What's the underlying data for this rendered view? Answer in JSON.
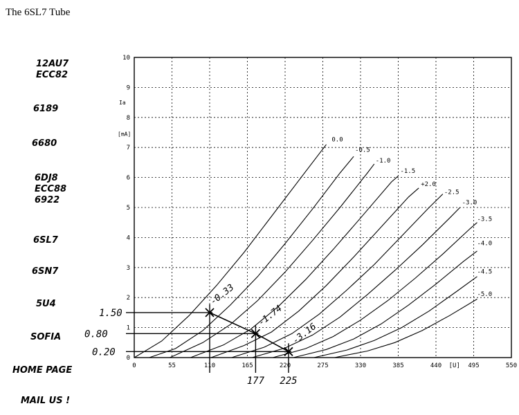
{
  "page": {
    "title": "The 6SL7 Tube"
  },
  "nav": {
    "items": [
      {
        "name": "nav-12au7",
        "lines": [
          "12AU7",
          "ECC82"
        ]
      },
      {
        "name": "nav-6189",
        "lines": [
          "6189"
        ]
      },
      {
        "name": "nav-6680",
        "lines": [
          "6680"
        ]
      },
      {
        "name": "nav-6dj8",
        "lines": [
          "6DJ8",
          "ECC88",
          "6922"
        ]
      },
      {
        "name": "nav-6sl7",
        "lines": [
          "6SL7"
        ]
      },
      {
        "name": "nav-6sn7",
        "lines": [
          "6SN7"
        ]
      },
      {
        "name": "nav-5u4",
        "lines": [
          "5U4"
        ]
      },
      {
        "name": "nav-sofia",
        "lines": [
          "SOFIA"
        ]
      },
      {
        "name": "nav-home-page",
        "lines": [
          "HOME PAGE"
        ]
      },
      {
        "name": "nav-mail-us",
        "lines": [
          "MAIL US !"
        ]
      }
    ]
  },
  "chart_data": {
    "type": "line",
    "title": "",
    "ylabel_lines": [
      "Ia",
      "[mA]"
    ],
    "xlabel": "[U]",
    "xlim": [
      0,
      550
    ],
    "ylim": [
      0,
      10
    ],
    "xticks": [
      0,
      55,
      110,
      165,
      220,
      275,
      330,
      385,
      440,
      495,
      550
    ],
    "xtick_labels": [
      "0",
      "55",
      "110",
      "165",
      "220",
      "275",
      "330",
      "385",
      "440",
      "495",
      "550"
    ],
    "yticks": [
      0,
      1,
      2,
      3,
      4,
      5,
      6,
      7,
      8,
      9,
      10
    ],
    "ytick_labels": [
      "0",
      "1",
      "2",
      "3",
      "4",
      "5",
      "6",
      "7",
      "8",
      "9",
      "10"
    ],
    "grid": true,
    "series": [
      {
        "name": "0.0",
        "x": [
          0,
          40,
          80,
          120,
          160,
          200,
          240,
          280
        ],
        "y": [
          0,
          0.55,
          1.4,
          2.4,
          3.5,
          4.7,
          5.9,
          7.1
        ]
      },
      {
        "name": "-0.5",
        "x": [
          22,
          60,
          100,
          140,
          180,
          220,
          260,
          300,
          320
        ],
        "y": [
          0,
          0.3,
          0.9,
          1.75,
          2.7,
          3.8,
          4.95,
          6.15,
          6.7
        ]
      },
      {
        "name": "-1.0",
        "x": [
          52,
          100,
          140,
          180,
          220,
          260,
          300,
          340,
          350
        ],
        "y": [
          0,
          0.5,
          1.1,
          1.9,
          2.85,
          3.9,
          5.0,
          6.15,
          6.45
        ]
      },
      {
        "name": "-1.5",
        "x": [
          82,
          130,
          170,
          210,
          250,
          290,
          330,
          375,
          385
        ],
        "y": [
          0,
          0.42,
          0.95,
          1.7,
          2.6,
          3.6,
          4.65,
          5.85,
          6.05
        ]
      },
      {
        "name": "+2.0",
        "x": [
          112,
          160,
          200,
          240,
          280,
          320,
          360,
          400,
          415
        ],
        "y": [
          0,
          0.4,
          0.85,
          1.55,
          2.4,
          3.35,
          4.35,
          5.35,
          5.65
        ]
      },
      {
        "name": "-2.5",
        "x": [
          142,
          190,
          230,
          270,
          310,
          350,
          390,
          430,
          450
        ],
        "y": [
          0,
          0.35,
          0.8,
          1.45,
          2.25,
          3.1,
          4.05,
          5.0,
          5.45
        ]
      },
      {
        "name": "-3.0",
        "x": [
          172,
          220,
          260,
          300,
          340,
          380,
          420,
          460,
          475
        ],
        "y": [
          0,
          0.32,
          0.75,
          1.35,
          2.1,
          2.9,
          3.75,
          4.65,
          5.0
        ]
      },
      {
        "name": "-3.5",
        "x": [
          202,
          250,
          290,
          330,
          370,
          410,
          450,
          490,
          500
        ],
        "y": [
          0,
          0.3,
          0.7,
          1.25,
          1.9,
          2.65,
          3.45,
          4.3,
          4.5
        ]
      },
      {
        "name": "-4.0",
        "x": [
          232,
          280,
          320,
          360,
          400,
          440,
          480,
          500
        ],
        "y": [
          0,
          0.27,
          0.62,
          1.12,
          1.75,
          2.45,
          3.2,
          3.55
        ]
      },
      {
        "name": "-4.5",
        "x": [
          262,
          310,
          350,
          390,
          430,
          470,
          500
        ],
        "y": [
          0,
          0.25,
          0.57,
          1.0,
          1.55,
          2.2,
          2.7
        ]
      },
      {
        "name": "-5.0",
        "x": [
          292,
          340,
          380,
          420,
          460,
          500
        ],
        "y": [
          0,
          0.22,
          0.5,
          0.9,
          1.4,
          1.95
        ]
      }
    ],
    "series_labels": [
      {
        "text": "0.0",
        "x": 288,
        "y": 7.2
      },
      {
        "text": "-0.5",
        "x": 322,
        "y": 6.85
      },
      {
        "text": "-1.0",
        "x": 352,
        "y": 6.5
      },
      {
        "text": "-1.5",
        "x": 388,
        "y": 6.15
      },
      {
        "text": "+2.0",
        "x": 418,
        "y": 5.72
      },
      {
        "text": "-2.5",
        "x": 452,
        "y": 5.45
      },
      {
        "text": "-3.0",
        "x": 478,
        "y": 5.1
      },
      {
        "text": "-3.5",
        "x": 500,
        "y": 4.55
      },
      {
        "text": "-4.0",
        "x": 500,
        "y": 3.75
      },
      {
        "text": "-4.5",
        "x": 500,
        "y": 2.8
      },
      {
        "text": "-5.0",
        "x": 500,
        "y": 2.05
      }
    ],
    "annotations": {
      "load_line": {
        "x": [
          110,
          177,
          225
        ],
        "y": [
          1.5,
          0.8,
          0.2
        ]
      },
      "operating_points": [
        {
          "x": 110,
          "y": 1.5,
          "vlabel": "110"
        },
        {
          "x": 177,
          "y": 0.8,
          "vlabel": "177"
        },
        {
          "x": 225,
          "y": 0.2,
          "vlabel": "225"
        }
      ],
      "current_labels": [
        {
          "text": "1.50",
          "y": 1.5
        },
        {
          "text": "0.80",
          "y": 0.8
        },
        {
          "text": "0.20",
          "y": 0.2
        }
      ],
      "voltage_labels": [
        {
          "text": "177",
          "x": 177
        },
        {
          "text": "225",
          "x": 225
        }
      ],
      "curve_notes": [
        {
          "text": "-0.33",
          "x": 115,
          "y": 1.75
        },
        {
          "text": "-1.74",
          "x": 185,
          "y": 1.05
        },
        {
          "text": "-3.16",
          "x": 235,
          "y": 0.45
        }
      ]
    }
  }
}
